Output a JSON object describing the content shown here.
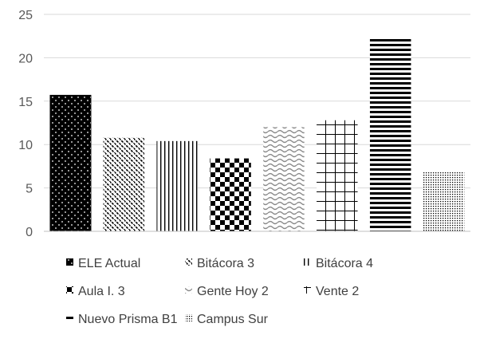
{
  "chart_data": {
    "type": "bar",
    "title": "",
    "xlabel": "",
    "ylabel": "",
    "categories": [
      "ELE Actual",
      "Bitácora 3",
      "Bitácora 4",
      "Aula I. 3",
      "Gente Hoy 2",
      "Vente 2",
      "Nuevo Prisma B1",
      "Campus Sur"
    ],
    "values": [
      15.7,
      10.8,
      10.4,
      8.4,
      12.0,
      12.8,
      22.3,
      6.8
    ],
    "ylim": [
      0,
      25
    ],
    "yticks": [
      "0",
      "5",
      "10",
      "15",
      "20",
      "25"
    ],
    "grid": true,
    "legend_position": "bottom",
    "bar_color": "#000000",
    "patterns": [
      "dots-on-black",
      "diagonal-dashes",
      "vertical-lines",
      "checkerboard",
      "waves",
      "grid",
      "horizontal-lines",
      "fine-dots"
    ]
  }
}
